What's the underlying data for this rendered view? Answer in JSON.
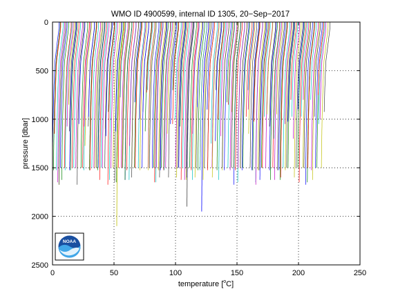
{
  "chart_data": {
    "type": "line",
    "title": "WMO ID 4900599, internal ID 1305, 20−Sep−2017",
    "xlabel_prefix": "temperature [",
    "xlabel_sup": "o",
    "xlabel_suffix": "C]",
    "ylabel": "pressure [dbar]",
    "xlim": [
      0,
      250
    ],
    "ylim": [
      0,
      2500
    ],
    "y_reversed": true,
    "grid": true,
    "legend": "none",
    "x_ticks": [
      "0",
      "50",
      "100",
      "150",
      "200",
      "250"
    ],
    "y_ticks": [
      "0",
      "500",
      "1000",
      "1500",
      "2000",
      "2500"
    ],
    "series_description": "waterfall of temperature profiles, each offset along x",
    "profile_offset_range": [
      5,
      225
    ],
    "profile_count": 210,
    "surface_temp_span": 6,
    "typical_max_pressure": [
      1500,
      1700
    ],
    "deep_profiles": [
      {
        "x_at_surface": 58,
        "max_pressure": 2100
      },
      {
        "x_at_surface": 115,
        "max_pressure": 1900
      },
      {
        "x_at_surface": 127,
        "max_pressure": 1960
      }
    ],
    "colors": [
      "#0000ff",
      "#008000",
      "#ff0000",
      "#00bfbf",
      "#bf00bf",
      "#bfbf00",
      "#404040"
    ]
  },
  "logo": {
    "icon": "noaa-logo-icon",
    "text": "NOAA"
  }
}
